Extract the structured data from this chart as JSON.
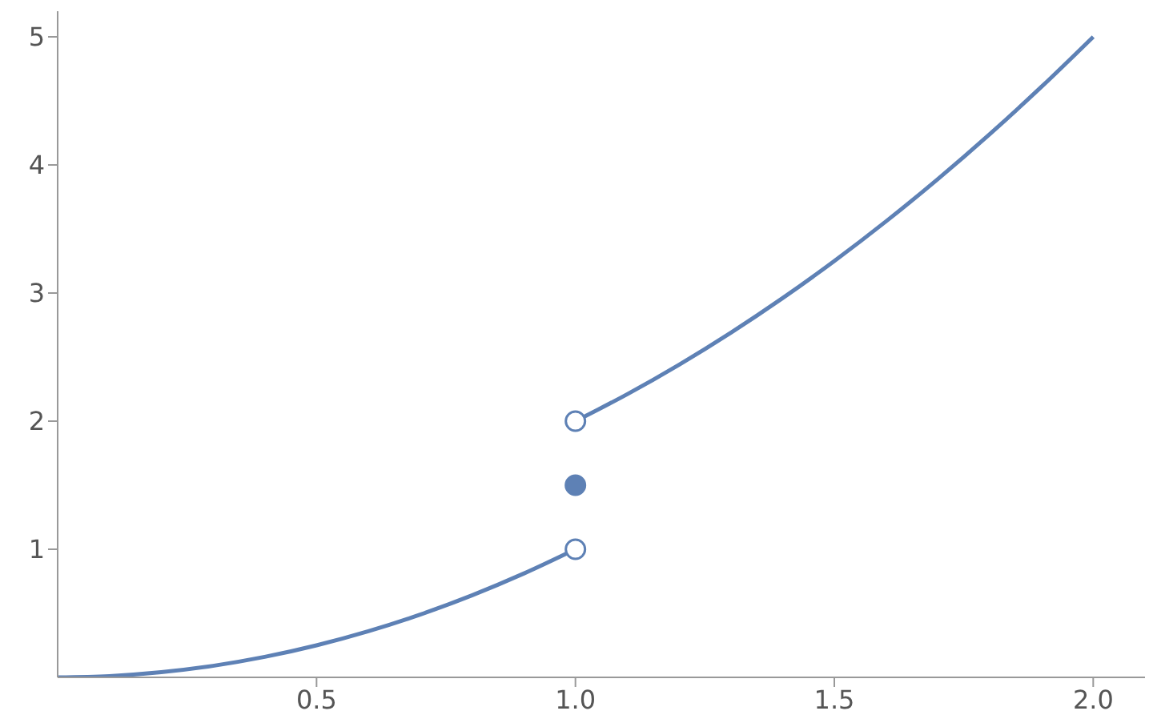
{
  "chart_data": {
    "type": "line",
    "color": "#5e81b5",
    "xlim": [
      0,
      2.1
    ],
    "ylim": [
      0,
      5.2
    ],
    "xticks": [
      0.5,
      {
        "value": 1,
        "label": "1.0"
      },
      1.5,
      {
        "value": 2,
        "label": "2.0"
      }
    ],
    "yticks": [
      1,
      2,
      3,
      4,
      5
    ],
    "grid": false,
    "legend": false,
    "line_style": "solid",
    "series": [
      {
        "type": "line",
        "color": "#5e81b5",
        "x": [
          0,
          0.1,
          0.2,
          0.3,
          0.4,
          0.5,
          0.6,
          0.7,
          0.8,
          0.9,
          1
        ],
        "values": [
          0,
          0.01,
          0.04,
          0.09,
          0.16,
          0.25,
          0.36,
          0.49,
          0.64,
          0.81,
          1
        ]
      },
      {
        "type": "line",
        "color": "#5e81b5",
        "x": [
          1,
          1.1,
          1.2,
          1.3,
          1.4,
          1.5,
          1.6,
          1.7,
          1.8,
          1.9,
          2
        ],
        "values": [
          2,
          2.21,
          2.44,
          2.69,
          2.96,
          3.25,
          3.56,
          3.89,
          4.24,
          4.61,
          5
        ]
      },
      {
        "type": "scatter",
        "color": "#ffffff",
        "marker": "circle",
        "x": [
          1,
          1
        ],
        "values": [
          1,
          2
        ]
      },
      {
        "type": "scatter",
        "color": "#5e81b5",
        "marker": "circle",
        "x": [
          1
        ],
        "values": [
          1.5
        ]
      }
    ]
  }
}
